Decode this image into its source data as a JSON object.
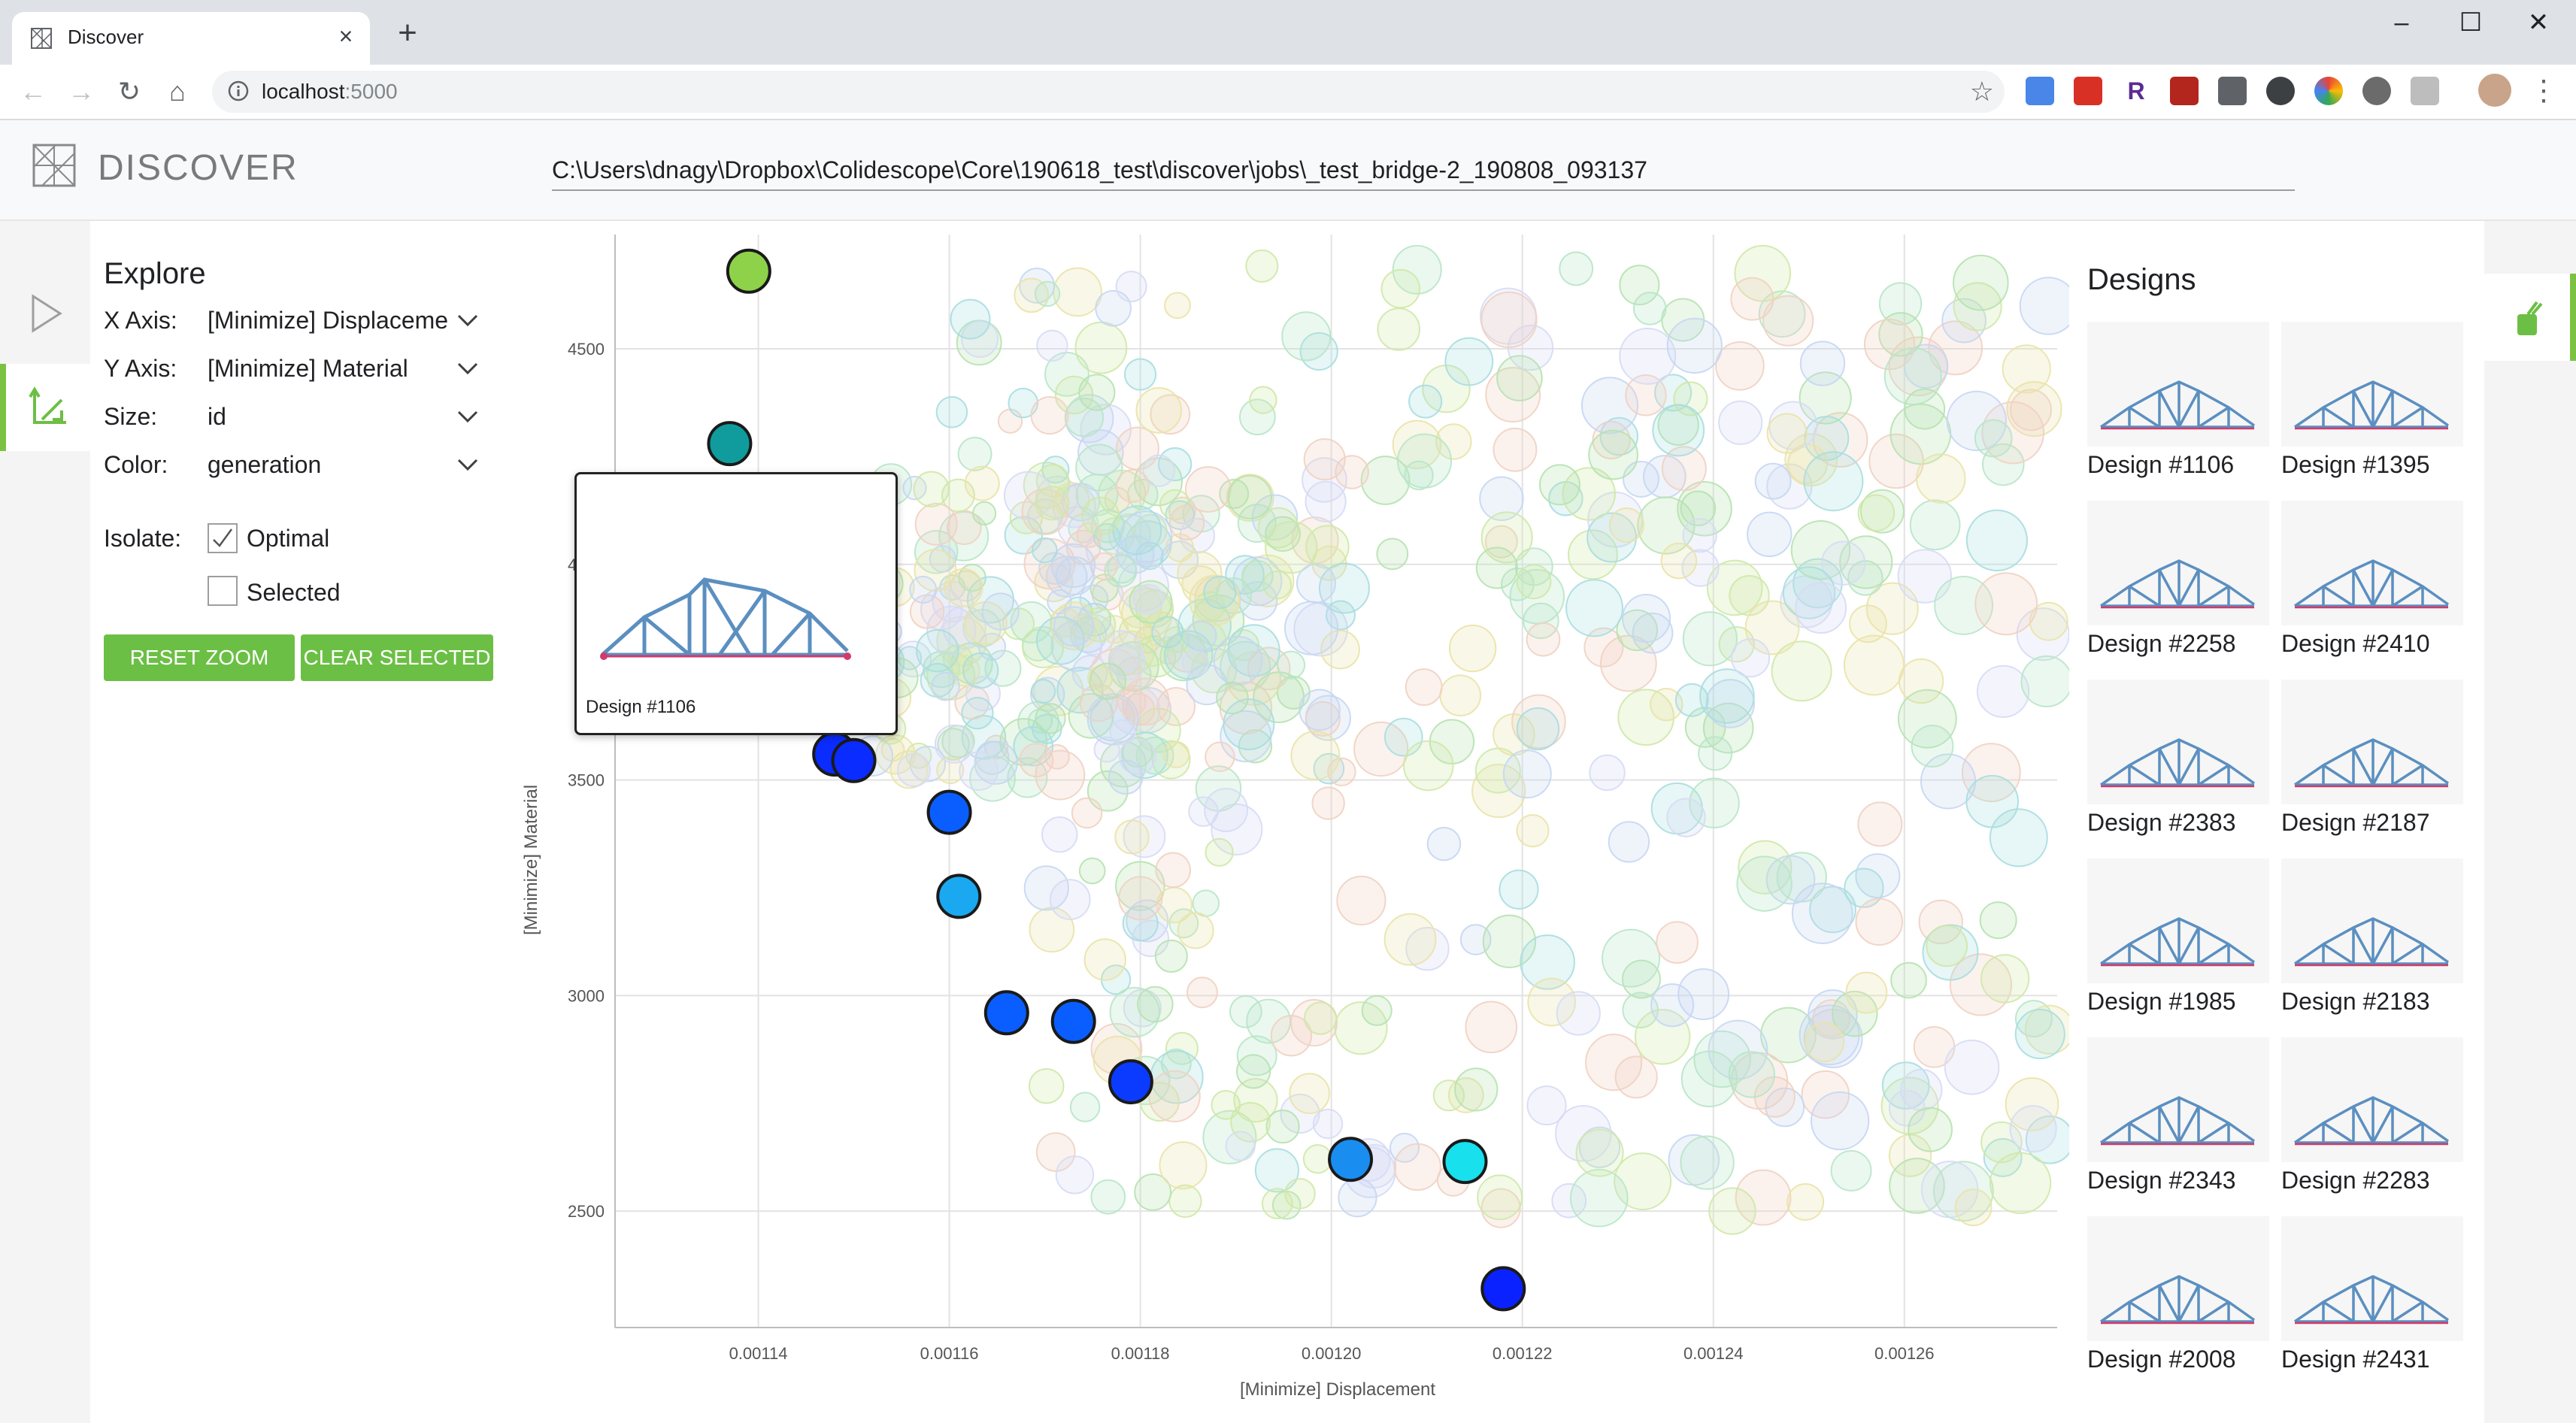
{
  "browser": {
    "tab_title": "Discover",
    "url_host": "localhost",
    "url_port": ":5000",
    "window_controls": [
      "minimize",
      "maximize",
      "close"
    ]
  },
  "app": {
    "name": "DISCOVER",
    "path": "C:\\Users\\dnagy\\Dropbox\\Colidescope\\Core\\190618_test\\discover\\jobs\\_test_bridge-2_190808_093137"
  },
  "explore": {
    "title": "Explore",
    "x_axis": {
      "label": "X Axis:",
      "value": "[Minimize] Displaceme"
    },
    "y_axis": {
      "label": "Y Axis:",
      "value": "[Minimize] Material"
    },
    "size": {
      "label": "Size:",
      "value": "id"
    },
    "color": {
      "label": "Color:",
      "value": "generation"
    },
    "isolate_label": "Isolate:",
    "optimal_label": "Optimal",
    "optimal_checked": true,
    "selected_label": "Selected",
    "selected_checked": false,
    "reset_zoom_label": "RESET ZOOM",
    "clear_selected_label": "CLEAR SELECTED"
  },
  "tooltip": {
    "label": "Design #1106"
  },
  "designs": {
    "title": "Designs",
    "items": [
      {
        "label": "Design #1106"
      },
      {
        "label": "Design #1395"
      },
      {
        "label": "Design #2258"
      },
      {
        "label": "Design #2410"
      },
      {
        "label": "Design #2383"
      },
      {
        "label": "Design #2187"
      },
      {
        "label": "Design #1985"
      },
      {
        "label": "Design #2183"
      },
      {
        "label": "Design #2343"
      },
      {
        "label": "Design #2283"
      },
      {
        "label": "Design #2008"
      },
      {
        "label": "Design #2431"
      }
    ]
  },
  "colors": {
    "accent_green": "#6cbf45",
    "optimal_blue": "#0a2cff",
    "optimal_cyan": "#18d6e8",
    "bridge_blue": "#5b8fc0"
  },
  "chart_data": {
    "type": "scatter",
    "xlabel": "[Minimize] Displacement",
    "ylabel": "[Minimize] Material",
    "xlim": [
      0.001125,
      0.001276
    ],
    "ylim": [
      2230,
      4765
    ],
    "x_ticks": [
      "0.00114",
      "0.00116",
      "0.00118",
      "0.00120",
      "0.00122",
      "0.00124",
      "0.00126"
    ],
    "x_tick_values": [
      0.00114,
      0.00116,
      0.00118,
      0.0012,
      0.00122,
      0.00124,
      0.00126
    ],
    "y_ticks": [
      "2500",
      "3000",
      "3500",
      "4000",
      "4500"
    ],
    "y_tick_values": [
      2500,
      3000,
      3500,
      4000,
      4500
    ],
    "grid": true,
    "optimal_series": {
      "name": "Optimal",
      "points": [
        {
          "x": 0.001139,
          "y": 4680,
          "color": "#8ed24a"
        },
        {
          "x": 0.001137,
          "y": 4280,
          "color": "#109c9c"
        },
        {
          "x": 0.001148,
          "y": 3560,
          "color": "#0a2cff"
        },
        {
          "x": 0.00115,
          "y": 3545,
          "color": "#0a2cff"
        },
        {
          "x": 0.00116,
          "y": 3425,
          "color": "#0a5eff"
        },
        {
          "x": 0.001161,
          "y": 3230,
          "color": "#1aa8f0"
        },
        {
          "x": 0.001166,
          "y": 2960,
          "color": "#0a5eff"
        },
        {
          "x": 0.001173,
          "y": 2940,
          "color": "#0a5eff"
        },
        {
          "x": 0.001179,
          "y": 2800,
          "color": "#0a3bff"
        },
        {
          "x": 0.001202,
          "y": 2620,
          "color": "#1a8ef0"
        },
        {
          "x": 0.001214,
          "y": 2615,
          "color": "#18e0ec"
        },
        {
          "x": 0.001218,
          "y": 2320,
          "color": "#0a22ff"
        }
      ]
    }
  }
}
